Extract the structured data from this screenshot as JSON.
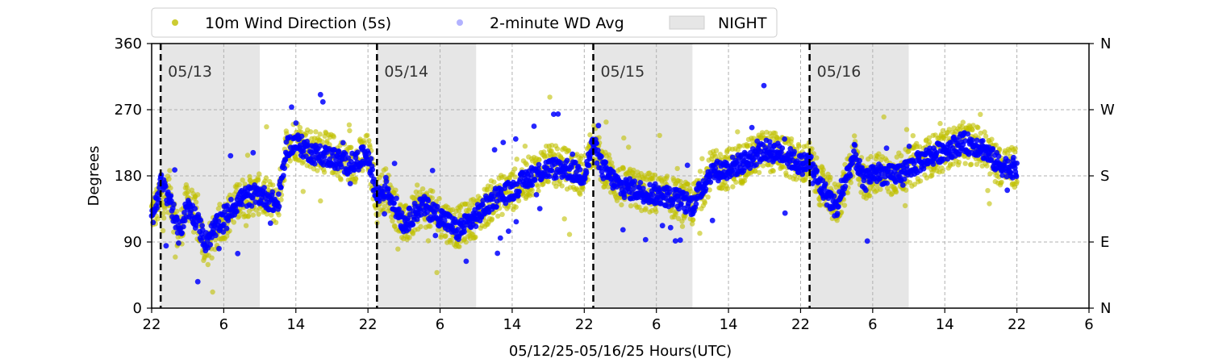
{
  "chart_data": {
    "type": "scatter",
    "xlabel": "05/12/25-05/16/25  Hours(UTC)",
    "ylabel": "Degrees",
    "xlim": [
      22,
      126
    ],
    "ylim": [
      0,
      360
    ],
    "x_tick_values": [
      22,
      30,
      38,
      46,
      54,
      62,
      70,
      78,
      86,
      94,
      102,
      110,
      118,
      126
    ],
    "x_tick_labels": [
      "22",
      "6",
      "14",
      "22",
      "6",
      "14",
      "22",
      "6",
      "14",
      "22",
      "6",
      "14",
      "22",
      "6"
    ],
    "y_tick_values": [
      0,
      90,
      180,
      270,
      360
    ],
    "y_tick_labels": [
      "0",
      "90",
      "180",
      "270",
      "360"
    ],
    "y2_tick_labels": [
      "N",
      "E",
      "S",
      "W",
      "N"
    ],
    "grid": true,
    "legend_position": "top",
    "night_legend_label": "NIGHT",
    "night_periods": [
      [
        23,
        34
      ],
      [
        47,
        58
      ],
      [
        71,
        82
      ],
      [
        95,
        106
      ]
    ],
    "day_markers": [
      {
        "x": 23,
        "label": "05/13"
      },
      {
        "x": 47,
        "label": "05/14"
      },
      {
        "x": 71,
        "label": "05/15"
      },
      {
        "x": 95,
        "label": "05/16"
      }
    ],
    "series": [
      {
        "name": "10m Wind Direction (5s)",
        "color": "#bfbf00",
        "x": [
          22,
          23,
          24,
          25,
          26,
          27,
          28,
          30,
          32,
          34,
          36,
          37,
          38,
          40,
          42,
          44,
          46,
          47,
          48,
          50,
          52,
          54,
          55,
          56,
          58,
          60,
          62,
          64,
          66,
          68,
          70,
          71,
          72,
          74,
          76,
          78,
          80,
          82,
          84,
          86,
          88,
          90,
          92,
          94,
          95,
          96,
          98,
          99,
          100,
          101,
          102,
          104,
          106,
          108,
          110,
          112,
          114,
          116,
          118
        ],
        "y": [
          130,
          145,
          160,
          95,
          150,
          120,
          80,
          120,
          150,
          155,
          140,
          225,
          230,
          215,
          210,
          195,
          210,
          150,
          165,
          110,
          140,
          125,
          115,
          110,
          125,
          150,
          160,
          180,
          195,
          190,
          180,
          225,
          195,
          165,
          160,
          155,
          150,
          140,
          185,
          190,
          200,
          215,
          210,
          195,
          200,
          170,
          140,
          170,
          215,
          170,
          185,
          180,
          190,
          205,
          215,
          225,
          220,
          195,
          190
        ],
        "spread": 28
      },
      {
        "name": "2-minute WD Avg",
        "color": "#0000ff",
        "x": [
          22,
          23,
          24,
          25,
          26,
          27,
          28,
          30,
          32,
          34,
          36,
          37,
          38,
          40,
          42,
          44,
          46,
          47,
          48,
          50,
          52,
          54,
          55,
          56,
          58,
          60,
          62,
          64,
          66,
          68,
          70,
          71,
          72,
          74,
          76,
          78,
          80,
          82,
          84,
          86,
          88,
          90,
          92,
          94,
          95,
          96,
          98,
          99,
          100,
          101,
          102,
          104,
          106,
          108,
          110,
          112,
          114,
          116,
          118
        ],
        "y": [
          120,
          170,
          150,
          100,
          140,
          120,
          90,
          125,
          150,
          155,
          140,
          220,
          225,
          210,
          205,
          195,
          210,
          150,
          165,
          115,
          140,
          125,
          115,
          105,
          125,
          150,
          160,
          180,
          190,
          190,
          180,
          225,
          190,
          165,
          160,
          155,
          150,
          140,
          185,
          190,
          200,
          215,
          210,
          195,
          200,
          170,
          135,
          175,
          210,
          170,
          185,
          180,
          190,
          205,
          215,
          225,
          220,
          195,
          190
        ],
        "spread": 14
      }
    ]
  }
}
